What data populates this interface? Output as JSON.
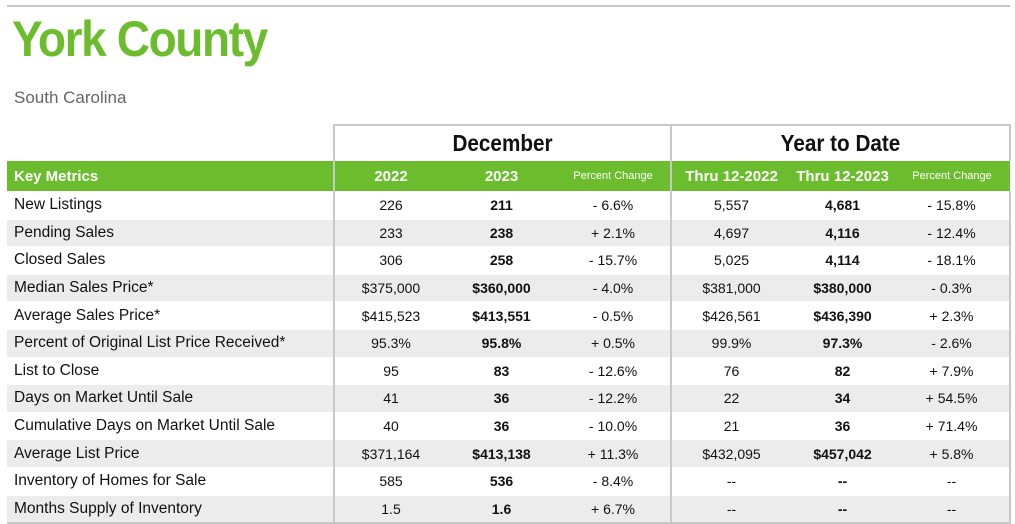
{
  "header": {
    "title": "York County",
    "subtitle": "South Carolina"
  },
  "groups": {
    "december": "December",
    "ytd": "Year to Date"
  },
  "columns": {
    "metric": "Key Metrics",
    "dec_prev": "2022",
    "dec_curr": "2023",
    "dec_pct": "Percent Change",
    "ytd_prev": "Thru 12-2022",
    "ytd_curr": "Thru 12-2023",
    "ytd_pct": "Percent Change"
  },
  "colors": {
    "accent_green": "#6cbd2e",
    "row_stripe": "#ececec",
    "rule_gray": "#c8c8c8"
  },
  "rows": [
    {
      "metric": "New Listings",
      "dec_prev": "226",
      "dec_curr": "211",
      "dec_pct": "- 6.6%",
      "ytd_prev": "5,557",
      "ytd_curr": "4,681",
      "ytd_pct": "- 15.8%"
    },
    {
      "metric": "Pending Sales",
      "dec_prev": "233",
      "dec_curr": "238",
      "dec_pct": "+ 2.1%",
      "ytd_prev": "4,697",
      "ytd_curr": "4,116",
      "ytd_pct": "- 12.4%"
    },
    {
      "metric": "Closed Sales",
      "dec_prev": "306",
      "dec_curr": "258",
      "dec_pct": "- 15.7%",
      "ytd_prev": "5,025",
      "ytd_curr": "4,114",
      "ytd_pct": "- 18.1%"
    },
    {
      "metric": "Median Sales Price*",
      "dec_prev": "$375,000",
      "dec_curr": "$360,000",
      "dec_pct": "- 4.0%",
      "ytd_prev": "$381,000",
      "ytd_curr": "$380,000",
      "ytd_pct": "- 0.3%"
    },
    {
      "metric": "Average Sales Price*",
      "dec_prev": "$415,523",
      "dec_curr": "$413,551",
      "dec_pct": "- 0.5%",
      "ytd_prev": "$426,561",
      "ytd_curr": "$436,390",
      "ytd_pct": "+ 2.3%"
    },
    {
      "metric": "Percent of Original List Price Received*",
      "dec_prev": "95.3%",
      "dec_curr": "95.8%",
      "dec_pct": "+ 0.5%",
      "ytd_prev": "99.9%",
      "ytd_curr": "97.3%",
      "ytd_pct": "- 2.6%"
    },
    {
      "metric": "List to Close",
      "dec_prev": "95",
      "dec_curr": "83",
      "dec_pct": "- 12.6%",
      "ytd_prev": "76",
      "ytd_curr": "82",
      "ytd_pct": "+ 7.9%"
    },
    {
      "metric": "Days on Market Until Sale",
      "dec_prev": "41",
      "dec_curr": "36",
      "dec_pct": "- 12.2%",
      "ytd_prev": "22",
      "ytd_curr": "34",
      "ytd_pct": "+ 54.5%"
    },
    {
      "metric": "Cumulative Days on Market Until Sale",
      "dec_prev": "40",
      "dec_curr": "36",
      "dec_pct": "- 10.0%",
      "ytd_prev": "21",
      "ytd_curr": "36",
      "ytd_pct": "+ 71.4%"
    },
    {
      "metric": "Average List Price",
      "dec_prev": "$371,164",
      "dec_curr": "$413,138",
      "dec_pct": "+ 11.3%",
      "ytd_prev": "$432,095",
      "ytd_curr": "$457,042",
      "ytd_pct": "+ 5.8%"
    },
    {
      "metric": "Inventory of Homes for Sale",
      "dec_prev": "585",
      "dec_curr": "536",
      "dec_pct": "- 8.4%",
      "ytd_prev": "--",
      "ytd_curr": "--",
      "ytd_pct": "--"
    },
    {
      "metric": "Months Supply of Inventory",
      "dec_prev": "1.5",
      "dec_curr": "1.6",
      "dec_pct": "+ 6.7%",
      "ytd_prev": "--",
      "ytd_curr": "--",
      "ytd_pct": "--"
    }
  ]
}
